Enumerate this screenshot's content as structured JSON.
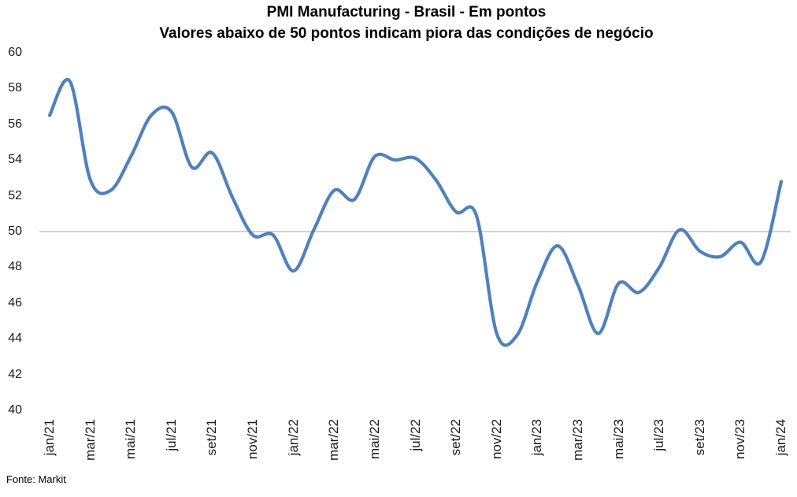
{
  "title": "PMI Manufacturing - Brasil - Em pontos",
  "subtitle": "Valores abaixo de 50 pontos indicam piora das condições de negócio",
  "source": "Fonte: Markit",
  "colors": {
    "line": "#4F81BD",
    "reference_line": "#A6A6A6",
    "text": "#1a1a1a",
    "background": "#FFFFFF"
  },
  "chart_data": {
    "type": "line",
    "title": "PMI Manufacturing - Brasil - Em pontos",
    "subtitle": "Valores abaixo de 50 pontos indicam piora das condições de negócio",
    "x": [
      "jan/21",
      "fev/21",
      "mar/21",
      "abr/21",
      "mai/21",
      "jun/21",
      "jul/21",
      "ago/21",
      "set/21",
      "out/21",
      "nov/21",
      "dez/21",
      "jan/22",
      "fev/22",
      "mar/22",
      "abr/22",
      "mai/22",
      "jun/22",
      "jul/22",
      "ago/22",
      "set/22",
      "out/22",
      "nov/22",
      "dez/22",
      "jan/23",
      "fev/23",
      "mar/23",
      "abr/23",
      "mai/23",
      "jun/23",
      "jul/23",
      "ago/23",
      "set/23",
      "out/23",
      "nov/23",
      "dez/23",
      "jan/24"
    ],
    "series": [
      {
        "name": "PMI Manufacturing Brasil (pontos)",
        "values": [
          56.5,
          58.4,
          52.9,
          52.3,
          54.2,
          56.5,
          56.7,
          53.6,
          54.4,
          51.9,
          49.8,
          49.8,
          47.8,
          50.1,
          52.3,
          51.8,
          54.2,
          54.0,
          54.1,
          52.9,
          51.1,
          50.9,
          44.3,
          44.2,
          47.2,
          49.2,
          47.0,
          44.3,
          47.1,
          46.6,
          48.0,
          50.1,
          48.9,
          48.6,
          49.4,
          48.3,
          52.8
        ]
      }
    ],
    "x_tick_labels": [
      "jan/21",
      "mar/21",
      "mai/21",
      "jul/21",
      "set/21",
      "nov/21",
      "jan/22",
      "mar/22",
      "mai/22",
      "jul/22",
      "set/22",
      "nov/22",
      "jan/23",
      "mar/23",
      "mai/23",
      "jul/23",
      "set/23",
      "nov/23",
      "jan/24"
    ],
    "y_ticks": [
      60,
      58,
      56,
      54,
      52,
      50,
      48,
      46,
      44,
      42,
      40
    ],
    "ylim": [
      40,
      60
    ],
    "reference_line": 50,
    "grid": "horizontal reference line at 50 only",
    "legend": "none",
    "smooth": true
  }
}
